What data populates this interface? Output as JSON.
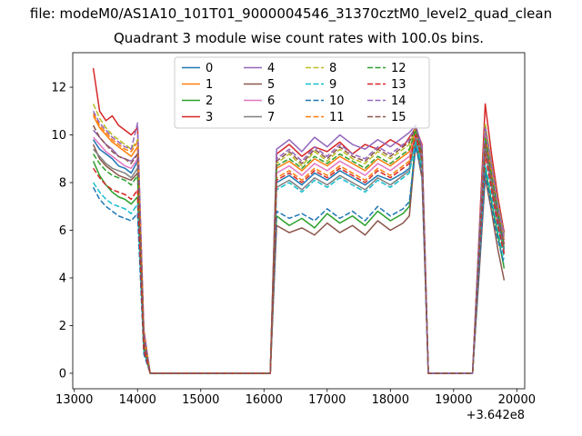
{
  "figure": {
    "suptitle": "file: modeM0/AS1A10_101T01_9000004546_31370cztM0_level2_quad_clean",
    "axes_title": "Quadrant 3 module wise count rates with 100.0s bins.",
    "x_offset_text": "+3.642e8"
  },
  "chart_data": {
    "type": "line",
    "title": "Quadrant 3 module wise count rates with 100.0s bins.",
    "xlabel": "",
    "ylabel": "",
    "x_offset": "+3.642e8",
    "xlim": [
      12975,
      20125
    ],
    "ylim": [
      -0.65,
      13.45
    ],
    "xticks": [
      13000,
      14000,
      15000,
      16000,
      17000,
      18000,
      19000,
      20000
    ],
    "yticks": [
      0,
      2,
      4,
      6,
      8,
      10,
      12
    ],
    "grid": false,
    "legend_position": "upper center",
    "legend_columns": 4,
    "x": [
      13300,
      13400,
      13500,
      13600,
      13700,
      13800,
      13900,
      14000,
      14100,
      14200,
      16000,
      16100,
      16200,
      16400,
      16600,
      16800,
      17000,
      17200,
      17400,
      17600,
      17800,
      18000,
      18200,
      18300,
      18400,
      18500,
      18600,
      19300,
      19400,
      19500,
      19600,
      19700,
      19800
    ],
    "series": [
      {
        "name": "0",
        "color": "#1f77b4",
        "dash": "solid",
        "values": [
          9.8,
          9.4,
          9.2,
          9.0,
          8.7,
          8.6,
          8.4,
          8.9,
          1.2,
          0,
          0,
          0,
          8.0,
          8.3,
          7.9,
          8.4,
          8.1,
          8.5,
          8.2,
          7.9,
          8.3,
          8.1,
          8.4,
          8.6,
          10.0,
          9.0,
          0,
          0,
          4.8,
          9.6,
          8.0,
          6.5,
          5.2
        ]
      },
      {
        "name": "1",
        "color": "#ff7f0e",
        "dash": "solid",
        "values": [
          10.8,
          10.3,
          10.0,
          9.7,
          9.5,
          9.3,
          9.1,
          9.5,
          1.5,
          0,
          0,
          0,
          8.6,
          8.9,
          8.5,
          9.0,
          8.7,
          9.1,
          8.8,
          8.5,
          9.0,
          8.7,
          9.1,
          9.3,
          10.2,
          9.4,
          0,
          0,
          5.2,
          10.2,
          8.6,
          7.0,
          5.6
        ]
      },
      {
        "name": "2",
        "color": "#2ca02c",
        "dash": "solid",
        "values": [
          8.9,
          8.3,
          7.9,
          7.6,
          7.4,
          7.3,
          7.1,
          7.4,
          1.0,
          0,
          0,
          0,
          6.6,
          6.2,
          6.5,
          6.1,
          6.7,
          6.3,
          6.6,
          6.2,
          6.8,
          6.4,
          6.7,
          7.0,
          9.8,
          8.6,
          0,
          0,
          4.2,
          8.6,
          7.2,
          5.8,
          4.4
        ]
      },
      {
        "name": "3",
        "color": "#d62728",
        "dash": "solid",
        "values": [
          12.8,
          11.0,
          10.6,
          10.8,
          10.4,
          10.2,
          10.0,
          10.3,
          1.8,
          0,
          0,
          0,
          9.2,
          9.6,
          9.1,
          9.5,
          9.3,
          9.7,
          9.2,
          9.6,
          9.4,
          9.8,
          9.5,
          9.9,
          10.3,
          9.6,
          0,
          0,
          5.6,
          11.3,
          9.2,
          7.4,
          5.9
        ]
      },
      {
        "name": "4",
        "color": "#9467bd",
        "dash": "solid",
        "values": [
          10.2,
          9.9,
          9.6,
          9.4,
          9.1,
          9.0,
          8.9,
          9.2,
          1.4,
          0,
          0,
          0,
          9.4,
          9.8,
          9.3,
          9.9,
          9.5,
          10.0,
          9.6,
          9.4,
          9.8,
          9.5,
          9.9,
          10.1,
          10.4,
          9.5,
          0,
          0,
          5.4,
          10.4,
          8.8,
          7.1,
          5.8
        ]
      },
      {
        "name": "5",
        "color": "#8c564b",
        "dash": "solid",
        "values": [
          9.6,
          9.0,
          8.7,
          8.5,
          8.3,
          8.2,
          8.1,
          8.4,
          1.1,
          0,
          0,
          0,
          6.2,
          5.9,
          6.1,
          5.8,
          6.3,
          5.9,
          6.2,
          5.8,
          6.4,
          6.0,
          6.3,
          6.6,
          9.6,
          8.2,
          0,
          0,
          4.0,
          8.2,
          6.8,
          5.2,
          3.9
        ]
      },
      {
        "name": "6",
        "color": "#e377c2",
        "dash": "solid",
        "values": [
          9.9,
          9.6,
          9.3,
          9.1,
          8.9,
          8.7,
          8.6,
          9.0,
          1.3,
          0,
          0,
          0,
          8.4,
          8.7,
          8.3,
          8.8,
          8.5,
          8.9,
          8.6,
          8.3,
          8.8,
          8.5,
          8.9,
          9.1,
          10.1,
          9.2,
          0,
          0,
          5.0,
          9.8,
          8.2,
          6.7,
          5.5
        ]
      },
      {
        "name": "7",
        "color": "#7f7f7f",
        "dash": "solid",
        "values": [
          9.4,
          9.1,
          8.8,
          8.6,
          8.5,
          8.4,
          8.2,
          8.6,
          1.2,
          0,
          0,
          0,
          7.8,
          8.1,
          7.7,
          8.2,
          7.9,
          8.3,
          8.0,
          7.7,
          8.2,
          7.9,
          8.3,
          8.5,
          9.9,
          8.9,
          0,
          0,
          4.7,
          9.4,
          7.8,
          6.3,
          5.1
        ]
      },
      {
        "name": "8",
        "color": "#bcbd22",
        "dash": "dashed",
        "values": [
          11.3,
          10.7,
          10.3,
          10.0,
          9.8,
          9.6,
          9.4,
          9.8,
          1.6,
          0,
          0,
          0,
          8.8,
          9.2,
          8.7,
          9.3,
          8.9,
          9.4,
          9.0,
          8.8,
          9.3,
          9.0,
          9.4,
          9.6,
          10.3,
          9.3,
          0,
          0,
          5.3,
          10.5,
          8.8,
          7.2,
          5.7
        ]
      },
      {
        "name": "9",
        "color": "#17becf",
        "dash": "dashed",
        "values": [
          8.0,
          7.6,
          7.3,
          7.1,
          7.0,
          6.9,
          6.7,
          7.1,
          0.9,
          0,
          0,
          0,
          7.7,
          8.0,
          7.6,
          8.1,
          7.8,
          8.2,
          7.9,
          7.6,
          8.1,
          7.8,
          8.2,
          8.4,
          9.7,
          8.7,
          0,
          0,
          4.5,
          8.8,
          7.4,
          6.0,
          4.8
        ]
      },
      {
        "name": "10",
        "color": "#1f77b4",
        "dash": "dashed",
        "values": [
          7.8,
          7.3,
          7.0,
          6.8,
          6.6,
          6.5,
          6.4,
          6.7,
          0.8,
          0,
          0,
          0,
          6.8,
          6.5,
          6.7,
          6.4,
          6.9,
          6.5,
          6.8,
          6.4,
          7.0,
          6.6,
          6.9,
          7.2,
          9.5,
          8.4,
          0,
          0,
          4.3,
          8.4,
          7.0,
          5.6,
          4.6
        ]
      },
      {
        "name": "11",
        "color": "#ff7f0e",
        "dash": "dashed",
        "values": [
          10.9,
          10.4,
          10.1,
          9.8,
          9.6,
          9.4,
          9.3,
          9.7,
          1.5,
          0,
          0,
          0,
          8.2,
          8.5,
          8.1,
          8.6,
          8.3,
          8.7,
          8.4,
          8.1,
          8.6,
          8.3,
          8.7,
          8.9,
          10.2,
          9.1,
          0,
          0,
          5.1,
          10.0,
          8.4,
          6.8,
          5.4
        ]
      },
      {
        "name": "12",
        "color": "#2ca02c",
        "dash": "dashed",
        "values": [
          9.2,
          8.8,
          8.5,
          8.3,
          8.2,
          8.1,
          7.9,
          8.3,
          1.1,
          0,
          0,
          0,
          8.7,
          9.0,
          8.6,
          9.1,
          8.8,
          9.2,
          8.9,
          8.6,
          9.1,
          8.8,
          9.2,
          9.4,
          10.2,
          9.2,
          0,
          0,
          5.2,
          9.9,
          8.3,
          6.8,
          5.3
        ]
      },
      {
        "name": "13",
        "color": "#d62728",
        "dash": "dashed",
        "values": [
          8.6,
          8.2,
          7.9,
          7.7,
          7.6,
          7.5,
          7.3,
          7.7,
          1.0,
          0,
          0,
          0,
          8.1,
          8.4,
          8.0,
          8.5,
          8.2,
          8.6,
          8.3,
          8.0,
          8.5,
          8.2,
          8.6,
          8.8,
          10.0,
          9.0,
          0,
          0,
          4.8,
          9.2,
          7.7,
          6.2,
          5.0
        ]
      },
      {
        "name": "14",
        "color": "#9467bd",
        "dash": "dashed",
        "values": [
          11.0,
          10.5,
          10.2,
          9.9,
          9.7,
          9.5,
          9.4,
          10.5,
          1.7,
          0,
          0,
          0,
          9.0,
          9.4,
          8.9,
          9.5,
          9.1,
          9.6,
          9.2,
          9.0,
          9.5,
          9.2,
          9.6,
          9.8,
          10.4,
          9.4,
          0,
          0,
          5.4,
          10.3,
          8.7,
          7.1,
          5.6
        ]
      },
      {
        "name": "15",
        "color": "#8c564b",
        "dash": "dashed",
        "values": [
          10.4,
          9.9,
          9.6,
          9.3,
          9.1,
          9.0,
          8.8,
          9.2,
          1.4,
          0,
          0,
          0,
          8.9,
          9.3,
          8.8,
          9.4,
          9.0,
          9.5,
          9.1,
          8.9,
          9.4,
          9.1,
          9.5,
          9.7,
          10.3,
          9.3,
          0,
          0,
          5.0,
          9.7,
          8.1,
          6.6,
          5.4
        ]
      }
    ]
  }
}
